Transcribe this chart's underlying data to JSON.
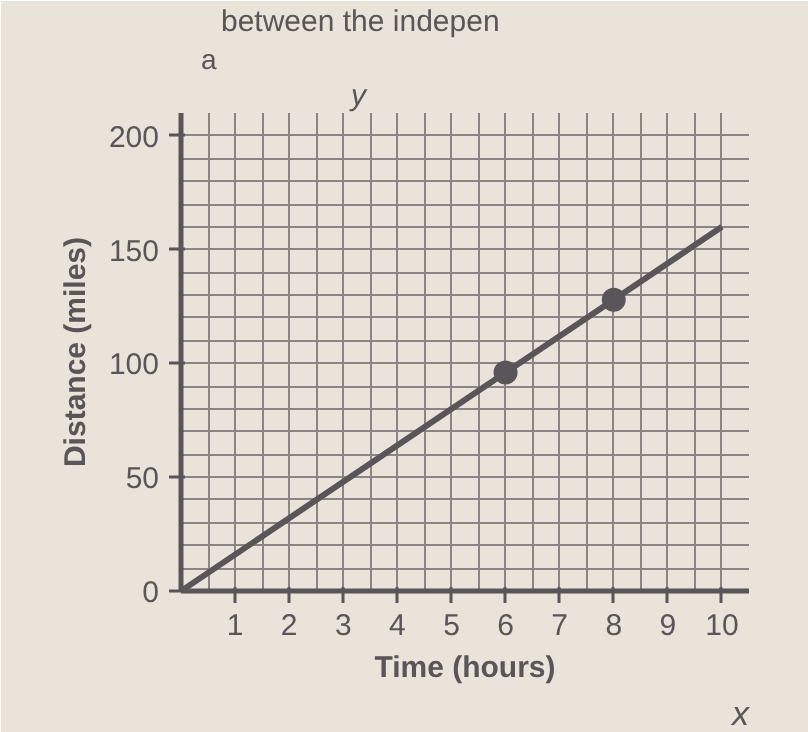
{
  "chart_data": {
    "type": "line",
    "xlabel": "Time (hours)",
    "ylabel": "Distance (miles)",
    "annotations": [
      "between the indepen",
      "a",
      "y",
      "x"
    ],
    "series": [
      {
        "color": "#5a5558",
        "x": [
          0,
          6,
          8,
          10
        ],
        "values": [
          0,
          96,
          128,
          160
        ],
        "marker": "none"
      },
      {
        "type": "scatter",
        "color": "#5a5558",
        "x": [
          6,
          8
        ],
        "values": [
          96,
          128
        ],
        "marker": "circle"
      }
    ],
    "xlim": [
      0,
      10.5
    ],
    "ylim": [
      0,
      210
    ],
    "xticks": [
      1,
      2,
      3,
      4,
      5,
      6,
      7,
      8,
      9,
      10
    ],
    "yticks": [
      0,
      50,
      100,
      150,
      200
    ],
    "grid": true
  }
}
